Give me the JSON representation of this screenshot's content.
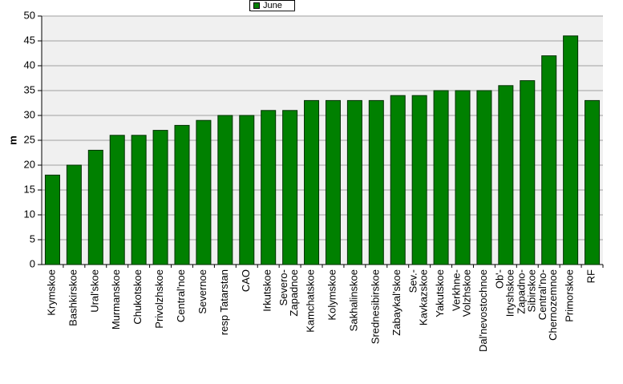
{
  "chart_data": {
    "type": "bar",
    "y_label": "m",
    "categories": [
      "Krymskoe",
      "Bashkirskoe",
      "Ural'skoe",
      "Murmanskoe",
      "Chukotskoe",
      "Privolzhskoe",
      "Central'noe",
      "Severnoe",
      "resp Tatarstan",
      "CAO",
      "Irkutskoe",
      "Severo-\nZapadnoe",
      "Kamchatskoe",
      "Kolymskoe",
      "Sakhalinskoe",
      "Srednesibirskoe",
      "Zabaykal'skoe",
      "Sev.-\nKavkazskoe",
      "Yakutskoe",
      "Verkhne-\nVolzhskoe",
      "Dal'nevostochnoe",
      "Ob'-\nIrtyshskoe",
      "Zapadno-\nSibirskoe",
      "Central'no-\nChernozemnoe",
      "Primorskoe",
      "RF"
    ],
    "series": [
      {
        "name": "June",
        "color": "#008000",
        "values": [
          18,
          20,
          23,
          26,
          26,
          27,
          28,
          29,
          30,
          30,
          31,
          31,
          33,
          33,
          33,
          33,
          34,
          34,
          35,
          35,
          35,
          36,
          37,
          42,
          46,
          33
        ]
      }
    ],
    "ylim": [
      0,
      50
    ],
    "yticks": [
      0,
      5,
      10,
      15,
      20,
      25,
      30,
      35,
      40,
      45,
      50
    ],
    "grid": true
  }
}
